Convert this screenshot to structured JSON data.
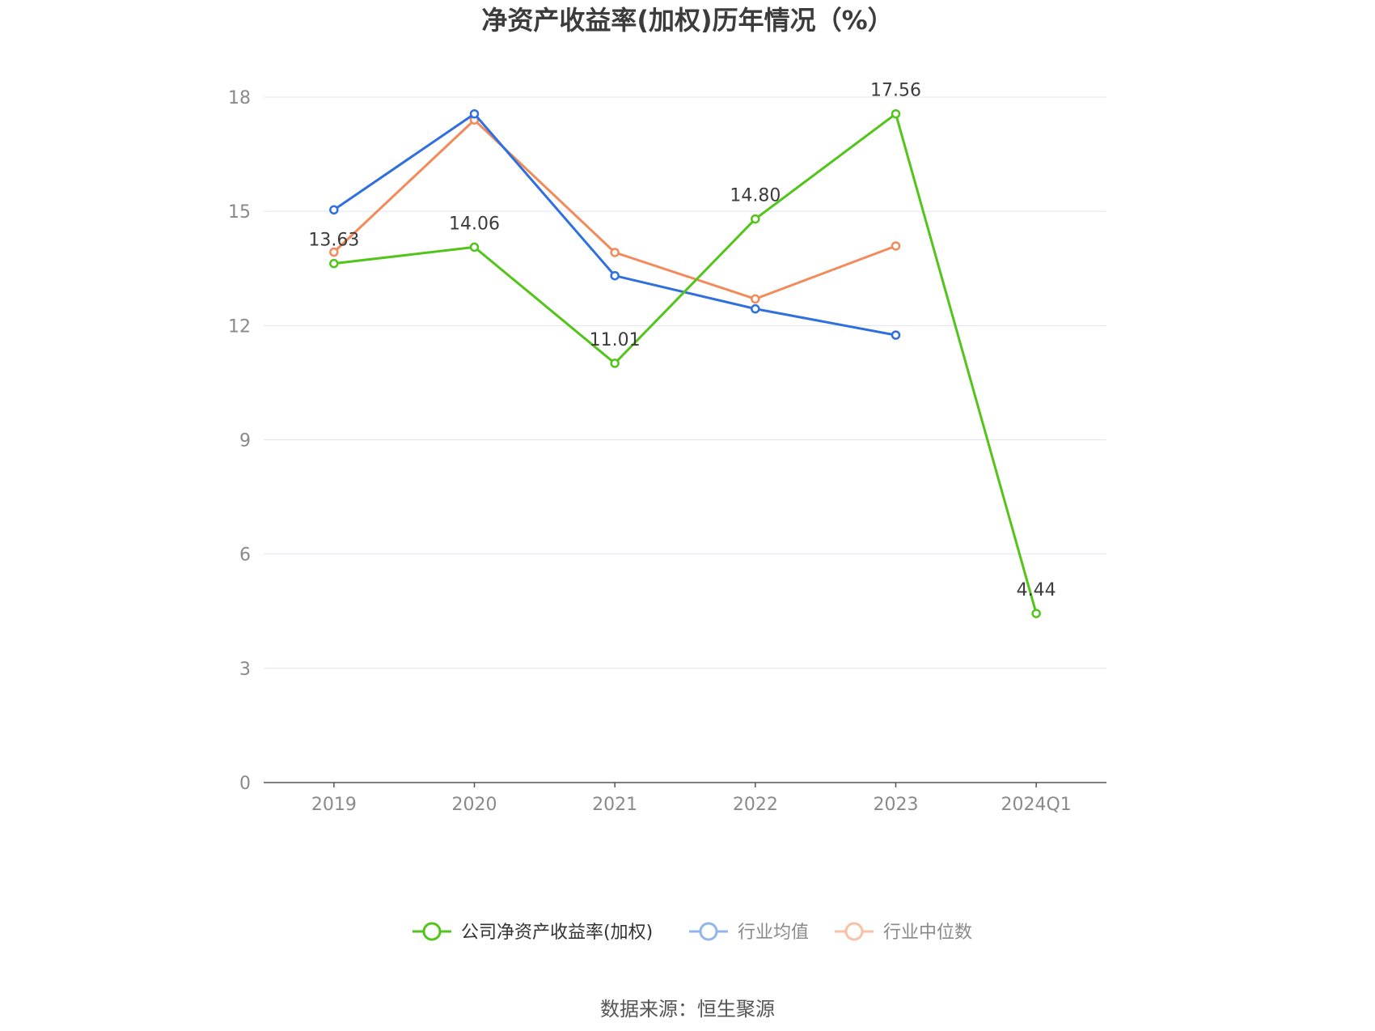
{
  "chart_data": {
    "type": "line",
    "title": "净资产收益率(加权)历年情况（%）",
    "categories": [
      "2019",
      "2020",
      "2021",
      "2022",
      "2023",
      "2024Q1"
    ],
    "ylim": [
      0,
      18
    ],
    "yticks": [
      0,
      3,
      6,
      9,
      12,
      15,
      18
    ],
    "grid": true,
    "legend_position": "bottom",
    "series": [
      {
        "name": "公司净资产收益率(加权)",
        "color": "#52c41a",
        "values": [
          13.63,
          14.06,
          11.01,
          14.8,
          17.56,
          4.44
        ],
        "labels": [
          "13.63",
          "14.06",
          "11.01",
          "14.80",
          "17.56",
          "4.44"
        ]
      },
      {
        "name": "行业均值",
        "color": "#2f6fde",
        "legend_color": "#93b5ee",
        "values": [
          15.04,
          17.56,
          13.31,
          12.44,
          11.75,
          null
        ]
      },
      {
        "name": "行业中位数",
        "color": "#f28a5a",
        "legend_color": "#f8c1a6",
        "values": [
          13.93,
          17.4,
          13.92,
          12.7,
          14.09,
          null
        ]
      }
    ]
  },
  "footer": {
    "source": "数据来源：恒生聚源"
  }
}
